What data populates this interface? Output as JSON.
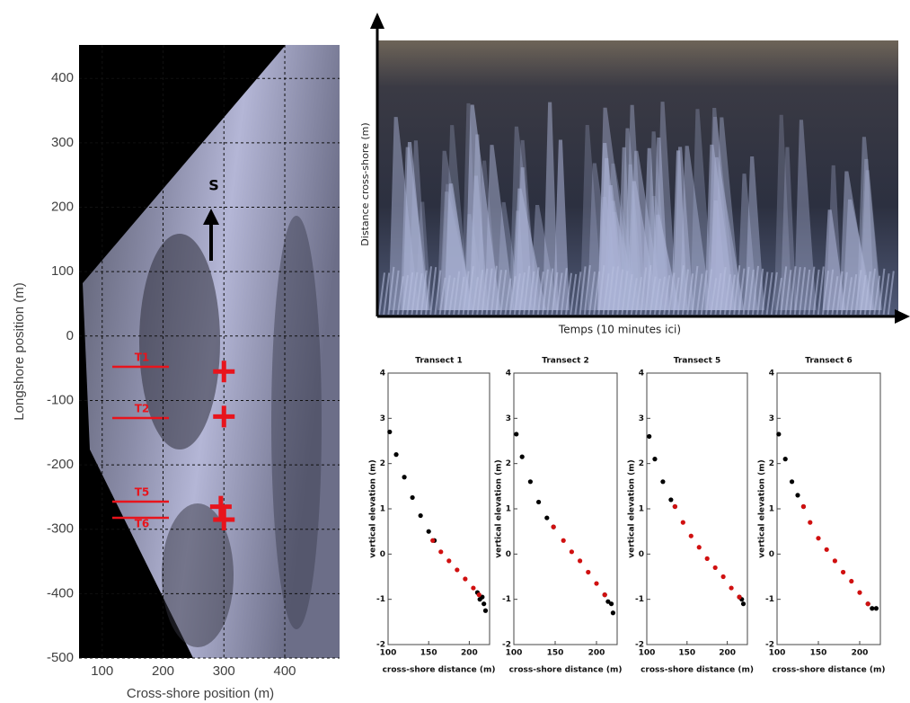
{
  "chart_data": [
    {
      "type": "image",
      "xlabel": "Cross-shore position (m)",
      "ylabel": "Longshore position (m)",
      "xlim": [
        62,
        490
      ],
      "ylim": [
        -500,
        452
      ],
      "xticks": [
        100,
        200,
        300,
        400
      ],
      "yticks": [
        -500,
        -400,
        -300,
        -200,
        -100,
        0,
        100,
        200,
        300,
        400
      ],
      "grid": true,
      "annotations": [
        "S"
      ],
      "transect_labels": [
        "T1",
        "T2",
        "T5",
        "T6"
      ],
      "markers": {
        "color": "#e8141c",
        "x": [
          300,
          300,
          295,
          300
        ],
        "y": [
          -55,
          -125,
          -265,
          -285
        ]
      }
    },
    {
      "type": "image",
      "xlabel": "Temps (10 minutes ici)",
      "ylabel": "Distance cross-shore (m)"
    },
    {
      "type": "scatter",
      "title": "Transect 1",
      "xlabel": "cross-shore distance (m)",
      "ylabel": "vertical elevation (m)",
      "xlim": [
        100,
        225
      ],
      "xticks": [
        100,
        150,
        200
      ],
      "ylim": [
        -2,
        4
      ],
      "yticks": [
        -2,
        -1,
        0,
        1,
        2,
        3,
        4
      ],
      "series": [
        {
          "color": "#000000",
          "x": [
            102,
            110,
            120,
            130,
            140,
            150,
            157,
            210,
            213,
            216,
            218,
            220
          ],
          "values": [
            2.7,
            2.2,
            1.7,
            1.25,
            0.85,
            0.5,
            0.3,
            -0.85,
            -1.0,
            -0.95,
            -1.1,
            -1.25
          ]
        },
        {
          "color": "#d01010",
          "x": [
            155,
            165,
            175,
            185,
            195,
            205,
            212
          ],
          "values": [
            0.3,
            0.05,
            -0.15,
            -0.35,
            -0.55,
            -0.75,
            -0.9
          ]
        }
      ]
    },
    {
      "type": "scatter",
      "title": "Transect 2",
      "xlabel": "cross-shore distance (m)",
      "ylabel": "vertical elevation (m)",
      "xlim": [
        100,
        225
      ],
      "xticks": [
        100,
        150,
        200
      ],
      "ylim": [
        -2,
        4
      ],
      "yticks": [
        -2,
        -1,
        0,
        1,
        2,
        3,
        4
      ],
      "series": [
        {
          "color": "#000000",
          "x": [
            103,
            110,
            120,
            130,
            140,
            148,
            210,
            214,
            218,
            220
          ],
          "values": [
            2.65,
            2.15,
            1.6,
            1.15,
            0.8,
            0.6,
            -0.9,
            -1.05,
            -1.1,
            -1.3
          ]
        },
        {
          "color": "#d01010",
          "x": [
            148,
            160,
            170,
            180,
            190,
            200,
            210
          ],
          "values": [
            0.6,
            0.3,
            0.05,
            -0.15,
            -0.4,
            -0.65,
            -0.9
          ]
        }
      ]
    },
    {
      "type": "scatter",
      "title": "Transect 5",
      "xlabel": "cross-shore distance (m)",
      "ylabel": "vertical elevation (m)",
      "xlim": [
        100,
        225
      ],
      "xticks": [
        100,
        150,
        200
      ],
      "ylim": [
        -2,
        4
      ],
      "yticks": [
        -2,
        -1,
        0,
        1,
        2,
        3,
        4
      ],
      "series": [
        {
          "color": "#000000",
          "x": [
            103,
            110,
            120,
            130,
            135,
            215,
            218,
            220
          ],
          "values": [
            2.6,
            2.1,
            1.6,
            1.2,
            1.05,
            -0.95,
            -1.0,
            -1.1
          ]
        },
        {
          "color": "#d01010",
          "x": [
            135,
            145,
            155,
            165,
            175,
            185,
            195,
            205,
            215
          ],
          "values": [
            1.05,
            0.7,
            0.4,
            0.15,
            -0.1,
            -0.3,
            -0.5,
            -0.75,
            -0.95
          ]
        }
      ]
    },
    {
      "type": "scatter",
      "title": "Transect 6",
      "xlabel": "cross-shore distance (m)",
      "ylabel": "vertical elevation (m)",
      "xlim": [
        100,
        225
      ],
      "xticks": [
        100,
        150,
        200
      ],
      "ylim": [
        -2,
        4
      ],
      "yticks": [
        -2,
        -1,
        0,
        1,
        2,
        3,
        4
      ],
      "series": [
        {
          "color": "#000000",
          "x": [
            102,
            110,
            118,
            125,
            132,
            210,
            215,
            220
          ],
          "values": [
            2.65,
            2.1,
            1.6,
            1.3,
            1.05,
            -1.1,
            -1.2,
            -1.2
          ]
        },
        {
          "color": "#d01010",
          "x": [
            132,
            140,
            150,
            160,
            170,
            180,
            190,
            200,
            210
          ],
          "values": [
            1.05,
            0.7,
            0.35,
            0.1,
            -0.15,
            -0.4,
            -0.6,
            -0.85,
            -1.1
          ]
        }
      ]
    }
  ]
}
